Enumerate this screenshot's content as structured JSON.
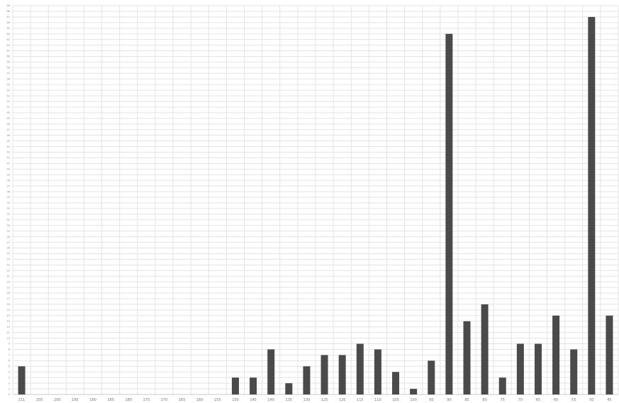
{
  "chart_data": {
    "type": "bar",
    "title": "",
    "xlabel": "",
    "ylabel": "",
    "categories": [
      "211",
      "205",
      "200",
      "195",
      "190",
      "185",
      "180",
      "175",
      "170",
      "165",
      "160",
      "155",
      "150",
      "145",
      "140",
      "135",
      "130",
      "125",
      "120",
      "115",
      "110",
      "105",
      "100",
      "95",
      "90",
      "85",
      "80",
      "75",
      "70",
      "65",
      "60",
      "55",
      "50",
      "45"
    ],
    "values": [
      5,
      0,
      0,
      0,
      0,
      0,
      0,
      0,
      0,
      0,
      0,
      0,
      3,
      3,
      8,
      2,
      5,
      7,
      7,
      9,
      8,
      4,
      1,
      6,
      64,
      13,
      16,
      3,
      9,
      9,
      14,
      8,
      67,
      14
    ],
    "ylim": [
      0,
      69
    ],
    "y_tick_step": 1,
    "grid": true,
    "legend": "none",
    "bar_color": "#4a4a4a"
  }
}
